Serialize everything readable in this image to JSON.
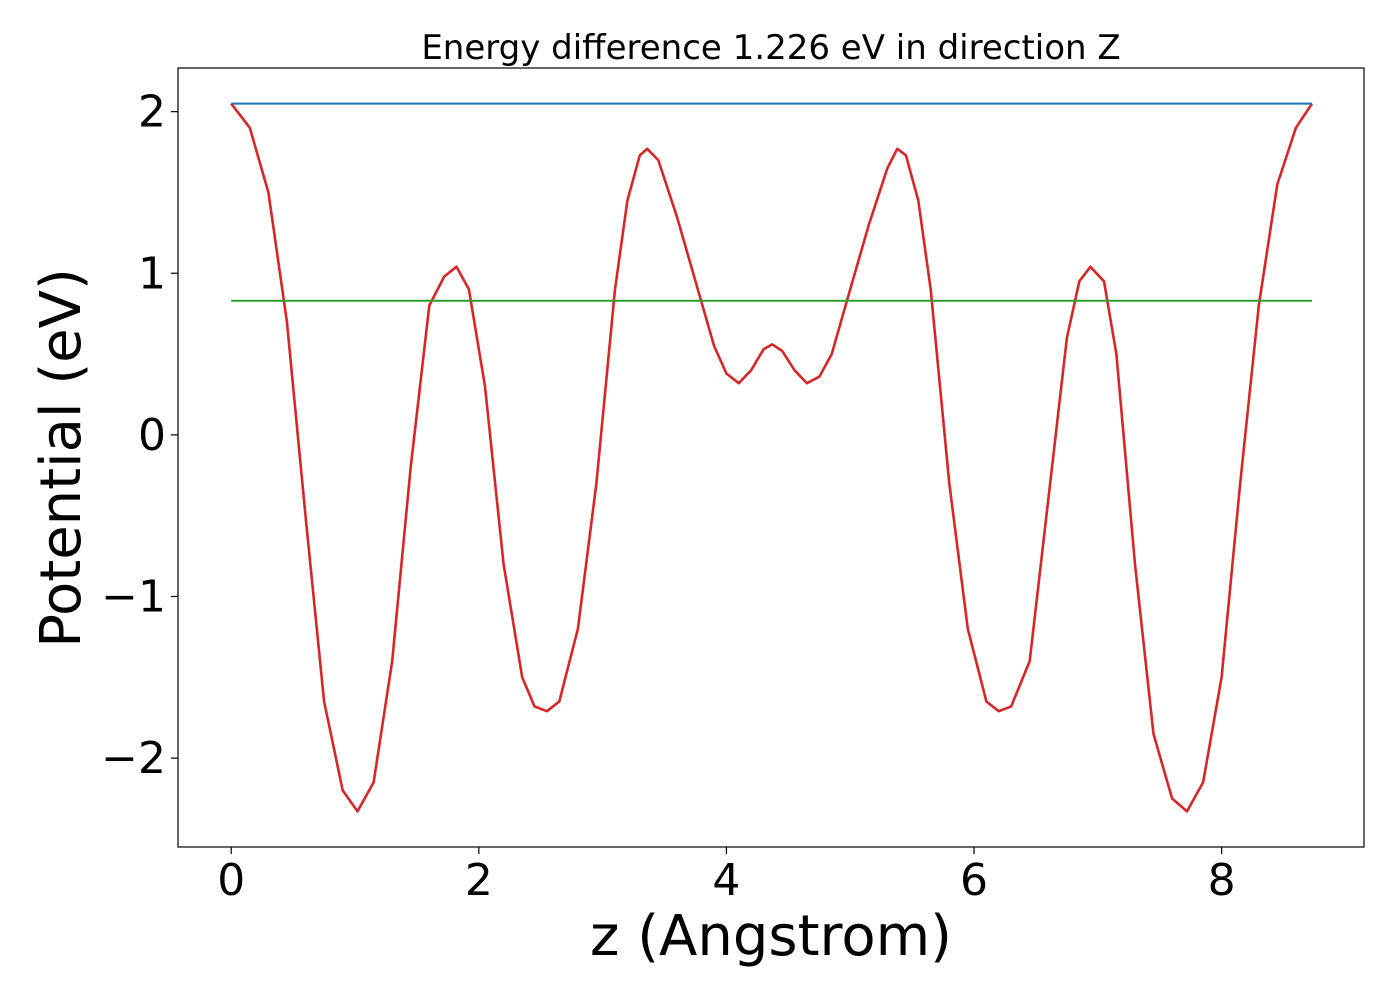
{
  "chart_data": {
    "type": "line",
    "title": "Energy difference 1.226 eV in direction Z",
    "xlabel": "z (Angstrom)",
    "ylabel": "Potential (eV)",
    "xlim": [
      -0.43,
      9.15
    ],
    "ylim": [
      -2.55,
      2.27
    ],
    "xticks": [
      0,
      2,
      4,
      6,
      8
    ],
    "yticks": [
      -2,
      -1,
      0,
      1,
      2
    ],
    "grid": false,
    "series": [
      {
        "color": "#d62728",
        "x": [
          0.0,
          0.15,
          0.3,
          0.45,
          0.6,
          0.75,
          0.9,
          1.02,
          1.15,
          1.3,
          1.45,
          1.6,
          1.72,
          1.82,
          1.92,
          2.05,
          2.2,
          2.35,
          2.45,
          2.55,
          2.65,
          2.8,
          2.95,
          3.1,
          3.2,
          3.3,
          3.36,
          3.45,
          3.6,
          3.75,
          3.9,
          4.0,
          4.1,
          4.2,
          4.3,
          4.37,
          4.45,
          4.55,
          4.65,
          4.75,
          4.85,
          5.0,
          5.15,
          5.3,
          5.38,
          5.45,
          5.55,
          5.65,
          5.8,
          5.95,
          6.1,
          6.2,
          6.3,
          6.45,
          6.6,
          6.75,
          6.85,
          6.94,
          7.05,
          7.15,
          7.3,
          7.45,
          7.6,
          7.72,
          7.85,
          8.0,
          8.15,
          8.3,
          8.45,
          8.6,
          8.73
        ],
        "y": [
          2.05,
          1.9,
          1.5,
          0.7,
          -0.5,
          -1.65,
          -2.2,
          -2.33,
          -2.15,
          -1.4,
          -0.2,
          0.8,
          0.98,
          1.04,
          0.9,
          0.3,
          -0.8,
          -1.5,
          -1.68,
          -1.71,
          -1.65,
          -1.2,
          -0.3,
          0.9,
          1.45,
          1.73,
          1.77,
          1.7,
          1.35,
          0.95,
          0.55,
          0.38,
          0.32,
          0.4,
          0.53,
          0.56,
          0.52,
          0.4,
          0.32,
          0.36,
          0.5,
          0.9,
          1.3,
          1.65,
          1.77,
          1.73,
          1.45,
          0.9,
          -0.3,
          -1.2,
          -1.65,
          -1.71,
          -1.68,
          -1.4,
          -0.4,
          0.6,
          0.95,
          1.04,
          0.95,
          0.5,
          -0.8,
          -1.85,
          -2.25,
          -2.33,
          -2.15,
          -1.5,
          -0.3,
          0.8,
          1.55,
          1.9,
          2.05
        ]
      },
      {
        "color": "#1f77b4",
        "x": [
          0.0,
          8.73
        ],
        "y": [
          2.05,
          2.05
        ]
      },
      {
        "color": "#2ca02c",
        "x": [
          0.0,
          8.73
        ],
        "y": [
          0.83,
          0.83
        ]
      }
    ]
  }
}
